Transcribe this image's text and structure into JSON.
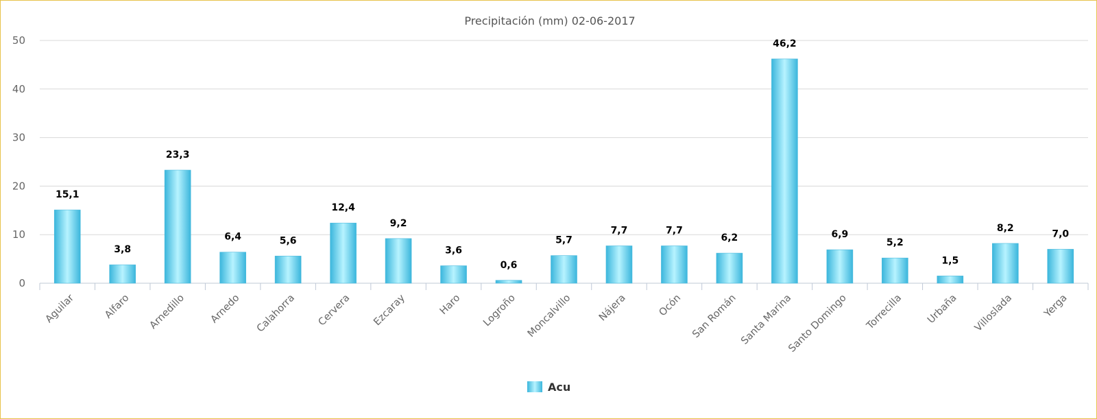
{
  "chart_data": {
    "type": "bar",
    "title": "Precipitación (mm) 02-06-2017",
    "xlabel": "",
    "ylabel": "",
    "ylim": [
      0,
      50
    ],
    "yticks": [
      "0",
      "10",
      "20",
      "30",
      "40",
      "50"
    ],
    "grid": true,
    "legend_position": "bottom-center",
    "categories": [
      "Aguilar",
      "Alfaro",
      "Arnedillo",
      "Arnedo",
      "Calahorra",
      "Cervera",
      "Ezcaray",
      "Haro",
      "Logroño",
      "Moncalvillo",
      "Nájera",
      "Ocón",
      "San Román",
      "Santa Marina",
      "Santo Domingo",
      "Torrecilla",
      "Urbaña",
      "Villoslada",
      "Yerga"
    ],
    "series": [
      {
        "name": "Acu",
        "color": "#5ac8e6",
        "values": [
          15.1,
          3.8,
          23.3,
          6.4,
          5.6,
          12.4,
          9.2,
          3.6,
          0.6,
          5.7,
          7.7,
          7.7,
          6.2,
          46.2,
          6.9,
          5.2,
          1.5,
          8.2,
          7.0
        ],
        "labels": [
          "15,1",
          "3,8",
          "23,3",
          "6,4",
          "5,6",
          "12,4",
          "9,2",
          "3,6",
          "0,6",
          "5,7",
          "7,7",
          "7,7",
          "6,2",
          "46,2",
          "6,9",
          "5,2",
          "1,5",
          "8,2",
          "7,0"
        ]
      }
    ]
  }
}
